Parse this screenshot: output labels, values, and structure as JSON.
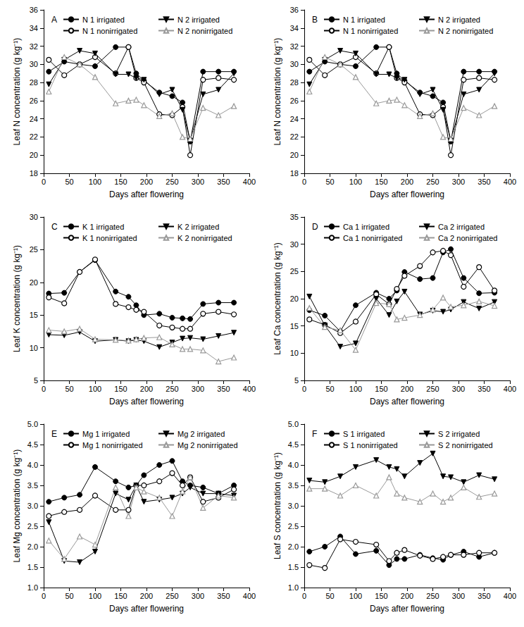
{
  "chart_data": [
    {
      "type": "line",
      "title": "A",
      "x_label": "Days after flowering",
      "y_label": "Leaf N concentration (g kg⁻¹)",
      "x": [
        10,
        40,
        70,
        100,
        140,
        165,
        180,
        195,
        225,
        250,
        270,
        285,
        310,
        340,
        370
      ],
      "xlim": [
        0,
        400
      ],
      "xticks": [
        0,
        50,
        100,
        150,
        200,
        250,
        300,
        350,
        400
      ],
      "ylim": [
        18,
        36
      ],
      "yticks": [
        18,
        20,
        22,
        24,
        26,
        28,
        30,
        32,
        34,
        36
      ],
      "grid": false,
      "series": [
        {
          "name": "N 1 irrigated",
          "color": "#000000",
          "marker": "circle",
          "values": [
            29.2,
            30.3,
            30.0,
            29.8,
            31.9,
            31.9,
            29.0,
            28.2,
            26.9,
            26.5,
            25.8,
            21.5,
            29.2,
            29.2,
            29.2
          ]
        },
        {
          "name": "N 1 nonirrigated",
          "color": "#000000",
          "marker": "circle-open",
          "values": [
            30.5,
            28.8,
            30.0,
            30.8,
            29.0,
            31.9,
            28.5,
            28.0,
            24.5,
            24.4,
            25.3,
            20.0,
            28.3,
            28.5,
            28.3
          ]
        },
        {
          "name": "N 2 irrigated",
          "color": "#000000",
          "marker": "triangle-down",
          "values": [
            27.8,
            30.5,
            31.5,
            31.2,
            28.9,
            28.9,
            28.5,
            28.3,
            26.7,
            27.2,
            25.0,
            21.6,
            26.7,
            27.2,
            29.0
          ]
        },
        {
          "name": "N 2 nonirrigated",
          "color": "#999999",
          "marker": "triangle-open",
          "values": [
            27.0,
            30.8,
            30.0,
            28.6,
            25.7,
            26.0,
            26.1,
            25.5,
            24.3,
            24.6,
            22.0,
            21.8,
            25.2,
            24.4,
            25.4
          ]
        }
      ]
    },
    {
      "type": "line",
      "title": "B",
      "x_label": "Days after flowering",
      "y_label": "Leaf N concentration (g kg⁻¹)",
      "x": [
        10,
        40,
        70,
        100,
        140,
        165,
        180,
        195,
        225,
        250,
        270,
        285,
        310,
        340,
        370
      ],
      "xlim": [
        0,
        400
      ],
      "xticks": [
        0,
        50,
        100,
        150,
        200,
        250,
        300,
        350,
        400
      ],
      "ylim": [
        18,
        36
      ],
      "yticks": [
        18,
        20,
        22,
        24,
        26,
        28,
        30,
        32,
        34,
        36
      ],
      "grid": false,
      "series": [
        {
          "name": "N 1 irrigated",
          "color": "#000000",
          "marker": "circle",
          "values": [
            29.2,
            30.3,
            30.0,
            29.8,
            31.9,
            31.9,
            29.0,
            28.2,
            26.9,
            26.5,
            25.8,
            21.5,
            29.2,
            29.2,
            29.2
          ]
        },
        {
          "name": "N 1 nonirrigated",
          "color": "#000000",
          "marker": "circle-open",
          "values": [
            30.5,
            28.8,
            30.0,
            30.8,
            29.0,
            31.9,
            28.5,
            28.0,
            24.5,
            24.4,
            25.3,
            20.0,
            28.3,
            28.5,
            28.3
          ]
        },
        {
          "name": "N 2 irrigated",
          "color": "#000000",
          "marker": "triangle-down",
          "values": [
            27.8,
            30.5,
            31.5,
            31.2,
            28.9,
            28.9,
            28.5,
            28.3,
            26.7,
            27.2,
            25.0,
            21.6,
            26.7,
            27.2,
            29.0
          ]
        },
        {
          "name": "N 2 nonirrigated",
          "color": "#999999",
          "marker": "triangle-open",
          "values": [
            27.0,
            30.8,
            30.0,
            28.6,
            25.7,
            26.0,
            26.1,
            25.5,
            24.3,
            24.6,
            22.0,
            21.8,
            25.2,
            24.4,
            25.4
          ]
        }
      ]
    },
    {
      "type": "line",
      "title": "C",
      "x_label": "Days after flowering",
      "y_label": "Leaf K concentration (g kg⁻¹)",
      "x": [
        10,
        40,
        70,
        100,
        140,
        165,
        180,
        195,
        225,
        250,
        270,
        285,
        310,
        340,
        370
      ],
      "xlim": [
        0,
        400
      ],
      "xticks": [
        0,
        50,
        100,
        150,
        200,
        250,
        300,
        350,
        400
      ],
      "ylim": [
        5,
        30
      ],
      "yticks": [
        5,
        10,
        15,
        20,
        25,
        30
      ],
      "grid": false,
      "series": [
        {
          "name": "K 1 irrigated",
          "color": "#000000",
          "marker": "circle",
          "values": [
            18.3,
            18.4,
            21.6,
            23.4,
            18.6,
            17.8,
            16.5,
            15.0,
            15.2,
            14.6,
            14.5,
            14.4,
            16.7,
            16.9,
            16.9
          ]
        },
        {
          "name": "K 1 nonirrigated",
          "color": "#000000",
          "marker": "circle-open",
          "values": [
            17.7,
            16.8,
            21.6,
            23.5,
            16.7,
            16.2,
            15.8,
            15.5,
            13.4,
            13.1,
            12.9,
            12.9,
            15.2,
            15.5,
            15.1
          ]
        },
        {
          "name": "K 2 irrigated",
          "color": "#000000",
          "marker": "triangle-down",
          "values": [
            12.0,
            11.9,
            12.4,
            11.0,
            11.2,
            11.0,
            11.2,
            11.0,
            10.1,
            10.8,
            11.4,
            11.5,
            11.3,
            11.8,
            12.3
          ]
        },
        {
          "name": "K 2 nonirrigated",
          "color": "#999999",
          "marker": "triangle-open",
          "values": [
            12.7,
            12.5,
            12.9,
            11.3,
            11.2,
            11.1,
            11.3,
            11.5,
            11.6,
            10.5,
            9.8,
            9.8,
            9.6,
            7.9,
            8.5
          ]
        }
      ]
    },
    {
      "type": "line",
      "title": "D",
      "x_label": "Days after flowering",
      "y_label": "Leaf Ca concentration (g kg⁻¹)",
      "x": [
        10,
        40,
        70,
        100,
        140,
        165,
        180,
        195,
        225,
        250,
        270,
        285,
        310,
        340,
        370
      ],
      "xlim": [
        0,
        400
      ],
      "xticks": [
        0,
        50,
        100,
        150,
        200,
        250,
        300,
        350,
        400
      ],
      "ylim": [
        5,
        35
      ],
      "yticks": [
        5,
        10,
        15,
        20,
        25,
        30,
        35
      ],
      "grid": false,
      "series": [
        {
          "name": "Ca 1 irrigated",
          "color": "#000000",
          "marker": "circle",
          "values": [
            17.9,
            16.9,
            14.0,
            18.8,
            21.1,
            20.0,
            21.5,
            24.9,
            23.6,
            23.8,
            28.5,
            29.1,
            23.8,
            21.0,
            21.1
          ]
        },
        {
          "name": "Ca 1 nonirrigated",
          "color": "#000000",
          "marker": "circle-open",
          "values": [
            16.2,
            15.2,
            13.7,
            15.8,
            20.8,
            19.0,
            21.8,
            24.2,
            26.0,
            28.5,
            28.8,
            28.0,
            22.2,
            25.8,
            21.5
          ]
        },
        {
          "name": "Ca 2 irrigated",
          "color": "#000000",
          "marker": "triangle-down",
          "values": [
            20.4,
            15.1,
            11.2,
            11.8,
            20.0,
            17.0,
            19.5,
            21.3,
            17.1,
            17.8,
            17.6,
            18.0,
            19.4,
            18.2,
            19.4
          ]
        },
        {
          "name": "Ca 2 nonirrigated",
          "color": "#999999",
          "marker": "triangle-open",
          "values": [
            18.3,
            14.8,
            14.2,
            10.6,
            19.2,
            19.0,
            16.2,
            16.5,
            17.0,
            18.0,
            20.2,
            18.5,
            18.8,
            19.5,
            18.7
          ]
        }
      ]
    },
    {
      "type": "line",
      "title": "E",
      "x_label": "Days after flowering",
      "y_label": "Leaf Mg concentration (g kg⁻¹)",
      "x": [
        10,
        40,
        70,
        100,
        140,
        165,
        180,
        195,
        225,
        250,
        270,
        285,
        310,
        340,
        370
      ],
      "xlim": [
        0,
        400
      ],
      "xticks": [
        0,
        50,
        100,
        150,
        200,
        250,
        300,
        350,
        400
      ],
      "ylim": [
        1,
        5
      ],
      "yticks": [
        {
          "value": 1,
          "label": "1.0"
        },
        1.5,
        {
          "value": 2,
          "label": "2.0"
        },
        2.5,
        {
          "value": 3,
          "label": "3.0"
        },
        3.5,
        {
          "value": 4,
          "label": "4.0"
        },
        4.5,
        {
          "value": 5,
          "label": "5.0"
        }
      ],
      "grid": false,
      "series": [
        {
          "name": "Mg 1 irrigated",
          "color": "#000000",
          "marker": "circle",
          "values": [
            3.1,
            3.2,
            3.27,
            3.95,
            3.6,
            3.45,
            3.5,
            3.75,
            4.0,
            4.1,
            3.6,
            3.5,
            3.45,
            3.3,
            3.5
          ]
        },
        {
          "name": "Mg 1 nonirrigated",
          "color": "#000000",
          "marker": "circle-open",
          "values": [
            2.75,
            2.85,
            2.9,
            3.25,
            2.9,
            2.9,
            3.5,
            3.5,
            3.6,
            3.8,
            3.5,
            3.7,
            3.1,
            3.2,
            3.4
          ]
        },
        {
          "name": "Mg 2 irrigated",
          "color": "#000000",
          "marker": "triangle-down",
          "values": [
            2.6,
            1.65,
            1.62,
            1.88,
            3.3,
            3.15,
            3.5,
            3.1,
            3.15,
            3.2,
            3.3,
            3.45,
            3.3,
            3.3,
            3.25
          ]
        },
        {
          "name": "Mg 2 nonirrigated",
          "color": "#999999",
          "marker": "triangle-open",
          "values": [
            2.15,
            1.7,
            2.25,
            2.05,
            3.45,
            2.75,
            3.45,
            3.35,
            3.2,
            2.75,
            3.35,
            3.7,
            2.95,
            3.25,
            3.2
          ]
        }
      ]
    },
    {
      "type": "line",
      "title": "F",
      "x_label": "Days after flowering",
      "y_label": "Leaf S concentration (g kg⁻¹)",
      "x": [
        10,
        40,
        70,
        100,
        140,
        165,
        180,
        195,
        225,
        250,
        270,
        285,
        310,
        340,
        370
      ],
      "xlim": [
        0,
        400
      ],
      "xticks": [
        0,
        50,
        100,
        150,
        200,
        250,
        300,
        350,
        400
      ],
      "ylim": [
        1,
        5
      ],
      "yticks": [
        {
          "value": 1,
          "label": "1.0"
        },
        1.5,
        {
          "value": 2,
          "label": "2.0"
        },
        2.5,
        {
          "value": 3,
          "label": "3.0"
        },
        3.5,
        {
          "value": 4,
          "label": "4.0"
        },
        4.5,
        {
          "value": 5,
          "label": "5.0"
        }
      ],
      "grid": false,
      "series": [
        {
          "name": "S 1 irrigated",
          "color": "#000000",
          "marker": "circle",
          "values": [
            1.88,
            2.0,
            2.25,
            1.82,
            1.9,
            1.55,
            1.7,
            1.7,
            1.8,
            1.72,
            1.68,
            1.8,
            1.88,
            1.75,
            1.85
          ]
        },
        {
          "name": "S 1 nonirrigated",
          "color": "#000000",
          "marker": "circle-open",
          "values": [
            1.55,
            1.48,
            2.18,
            2.12,
            2.05,
            1.65,
            1.85,
            1.92,
            1.78,
            1.7,
            1.75,
            1.8,
            1.8,
            1.85,
            1.85
          ]
        },
        {
          "name": "S 2 irrigated",
          "color": "#000000",
          "marker": "triangle-down",
          "values": [
            3.62,
            3.58,
            3.72,
            3.95,
            4.12,
            3.95,
            3.9,
            3.72,
            4.05,
            4.28,
            3.72,
            3.7,
            3.58,
            3.75,
            3.65
          ]
        },
        {
          "name": "S 2 nonirrigated",
          "color": "#999999",
          "marker": "triangle-open",
          "values": [
            3.42,
            3.42,
            3.25,
            3.5,
            3.25,
            3.7,
            3.3,
            3.2,
            3.1,
            3.3,
            3.1,
            3.2,
            3.45,
            3.22,
            3.3
          ]
        }
      ]
    }
  ]
}
